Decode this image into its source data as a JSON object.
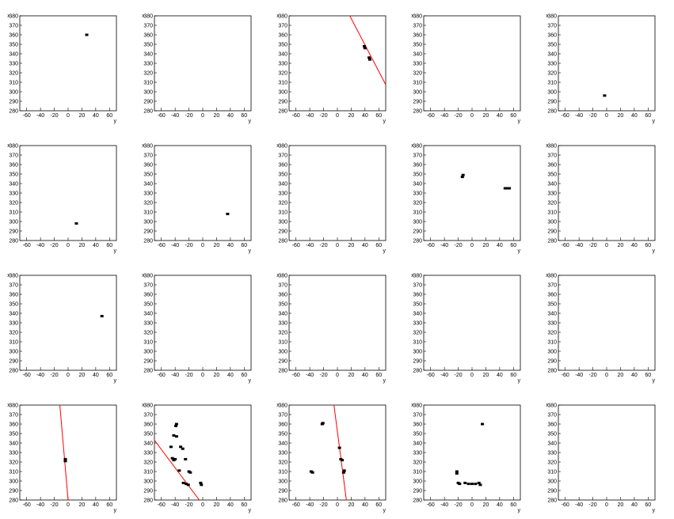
{
  "chart_data": [
    {
      "type": "scatter",
      "x": [
        27
      ],
      "y": [
        360
      ],
      "color": "#000000",
      "xlabel": "y",
      "ylabel": "x",
      "xlim": [
        -70,
        70
      ],
      "ylim": [
        280,
        380
      ],
      "xticks": [
        -60,
        -40,
        -20,
        0,
        20,
        40,
        60
      ],
      "yticks": [
        280,
        290,
        300,
        310,
        320,
        330,
        340,
        350,
        360,
        370,
        380
      ]
    },
    {
      "type": "scatter",
      "x": [],
      "y": [],
      "color": "#000000",
      "xlabel": "y",
      "ylabel": "x",
      "xlim": [
        -70,
        70
      ],
      "ylim": [
        280,
        380
      ],
      "xticks": [
        -60,
        -40,
        -20,
        0,
        20,
        40,
        60
      ],
      "yticks": [
        280,
        290,
        300,
        310,
        320,
        330,
        340,
        350,
        360,
        370,
        380
      ]
    },
    {
      "type": "scatter",
      "x": [
        39,
        40,
        46,
        47
      ],
      "y": [
        348,
        346,
        336,
        334
      ],
      "color": "#000000",
      "fit": {
        "x": [
          18,
          70
        ],
        "y": [
          380,
          307.5
        ],
        "color": "#ff0000"
      },
      "xlabel": "y",
      "ylabel": "x",
      "xlim": [
        -70,
        70
      ],
      "ylim": [
        280,
        380
      ],
      "xticks": [
        -60,
        -40,
        -20,
        0,
        20,
        40,
        60
      ],
      "yticks": [
        280,
        290,
        300,
        310,
        320,
        330,
        340,
        350,
        360,
        370,
        380
      ]
    },
    {
      "type": "scatter",
      "x": [],
      "y": [],
      "color": "#000000",
      "xlabel": "y",
      "ylabel": "x",
      "xlim": [
        -70,
        70
      ],
      "ylim": [
        280,
        380
      ],
      "xticks": [
        -60,
        -40,
        -20,
        0,
        20,
        40,
        60
      ],
      "yticks": [
        280,
        290,
        300,
        310,
        320,
        330,
        340,
        350,
        360,
        370,
        380
      ]
    },
    {
      "type": "scatter",
      "x": [
        -3
      ],
      "y": [
        296
      ],
      "color": "#000000",
      "xlabel": "y",
      "ylabel": "x",
      "xlim": [
        -70,
        70
      ],
      "ylim": [
        280,
        380
      ],
      "xticks": [
        -60,
        -40,
        -20,
        0,
        20,
        40,
        60
      ],
      "yticks": [
        280,
        290,
        300,
        310,
        320,
        330,
        340,
        350,
        360,
        370,
        380
      ]
    },
    {
      "type": "scatter",
      "x": [
        12
      ],
      "y": [
        298
      ],
      "color": "#000000",
      "xlabel": "y",
      "ylabel": "x",
      "xlim": [
        -70,
        70
      ],
      "ylim": [
        280,
        380
      ],
      "xticks": [
        -60,
        -40,
        -20,
        0,
        20,
        40,
        60
      ],
      "yticks": [
        280,
        290,
        300,
        310,
        320,
        330,
        340,
        350,
        360,
        370,
        380
      ]
    },
    {
      "type": "scatter",
      "x": [
        36
      ],
      "y": [
        308
      ],
      "color": "#000000",
      "xlabel": "y",
      "ylabel": "x",
      "xlim": [
        -70,
        70
      ],
      "ylim": [
        280,
        380
      ],
      "xticks": [
        -60,
        -40,
        -20,
        0,
        20,
        40,
        60
      ],
      "yticks": [
        280,
        290,
        300,
        310,
        320,
        330,
        340,
        350,
        360,
        370,
        380
      ]
    },
    {
      "type": "scatter",
      "x": [],
      "y": [],
      "color": "#000000",
      "xlabel": "y",
      "ylabel": "x",
      "xlim": [
        -70,
        70
      ],
      "ylim": [
        280,
        380
      ],
      "xticks": [
        -60,
        -40,
        -20,
        0,
        20,
        40,
        60
      ],
      "yticks": [
        280,
        290,
        300,
        310,
        320,
        330,
        340,
        350,
        360,
        370,
        380
      ]
    },
    {
      "type": "scatter",
      "x": [
        -14,
        -13,
        48,
        50,
        52,
        54
      ],
      "y": [
        347,
        349,
        335,
        335,
        335,
        335
      ],
      "color": "#000000",
      "xlabel": "y",
      "ylabel": "x",
      "xlim": [
        -70,
        70
      ],
      "ylim": [
        280,
        380
      ],
      "xticks": [
        -60,
        -40,
        -20,
        0,
        20,
        40,
        60
      ],
      "yticks": [
        280,
        290,
        300,
        310,
        320,
        330,
        340,
        350,
        360,
        370,
        380
      ]
    },
    {
      "type": "scatter",
      "x": [],
      "y": [],
      "color": "#000000",
      "xlabel": "y",
      "ylabel": "x",
      "xlim": [
        -70,
        70
      ],
      "ylim": [
        280,
        380
      ],
      "xticks": [
        -60,
        -40,
        -20,
        0,
        20,
        40,
        60
      ],
      "yticks": [
        280,
        290,
        300,
        310,
        320,
        330,
        340,
        350,
        360,
        370,
        380
      ]
    },
    {
      "type": "scatter",
      "x": [
        49
      ],
      "y": [
        337
      ],
      "color": "#000000",
      "xlabel": "y",
      "ylabel": "x",
      "xlim": [
        -70,
        70
      ],
      "ylim": [
        280,
        380
      ],
      "xticks": [
        -60,
        -40,
        -20,
        0,
        20,
        40,
        60
      ],
      "yticks": [
        280,
        290,
        300,
        310,
        320,
        330,
        340,
        350,
        360,
        370,
        380
      ]
    },
    {
      "type": "scatter",
      "x": [],
      "y": [],
      "color": "#000000",
      "xlabel": "y",
      "ylabel": "x",
      "xlim": [
        -70,
        70
      ],
      "ylim": [
        280,
        380
      ],
      "xticks": [
        -60,
        -40,
        -20,
        0,
        20,
        40,
        60
      ],
      "yticks": [
        280,
        290,
        300,
        310,
        320,
        330,
        340,
        350,
        360,
        370,
        380
      ]
    },
    {
      "type": "scatter",
      "x": [],
      "y": [],
      "color": "#000000",
      "xlabel": "y",
      "ylabel": "x",
      "xlim": [
        -70,
        70
      ],
      "ylim": [
        280,
        380
      ],
      "xticks": [
        -60,
        -40,
        -20,
        0,
        20,
        40,
        60
      ],
      "yticks": [
        280,
        290,
        300,
        310,
        320,
        330,
        340,
        350,
        360,
        370,
        380
      ]
    },
    {
      "type": "scatter",
      "x": [],
      "y": [],
      "color": "#000000",
      "xlabel": "y",
      "ylabel": "x",
      "xlim": [
        -70,
        70
      ],
      "ylim": [
        280,
        380
      ],
      "xticks": [
        -60,
        -40,
        -20,
        0,
        20,
        40,
        60
      ],
      "yticks": [
        280,
        290,
        300,
        310,
        320,
        330,
        340,
        350,
        360,
        370,
        380
      ]
    },
    {
      "type": "scatter",
      "x": [],
      "y": [],
      "color": "#000000",
      "xlabel": "y",
      "ylabel": "x",
      "xlim": [
        -70,
        70
      ],
      "ylim": [
        280,
        380
      ],
      "xticks": [
        -60,
        -40,
        -20,
        0,
        20,
        40,
        60
      ],
      "yticks": [
        280,
        290,
        300,
        310,
        320,
        330,
        340,
        350,
        360,
        370,
        380
      ]
    },
    {
      "type": "scatter",
      "x": [
        -4,
        -4
      ],
      "y": [
        323,
        321
      ],
      "color": "#000000",
      "fit": {
        "x": [
          -12,
          0
        ],
        "y": [
          380,
          280
        ],
        "color": "#ff0000"
      },
      "xlabel": "y",
      "ylabel": "x",
      "xlim": [
        -70,
        70
      ],
      "ylim": [
        280,
        380
      ],
      "xticks": [
        -60,
        -40,
        -20,
        0,
        20,
        40,
        60
      ],
      "yticks": [
        280,
        290,
        300,
        310,
        320,
        330,
        340,
        350,
        360,
        370,
        380
      ]
    },
    {
      "type": "scatter",
      "x": [
        -38,
        -39,
        -42,
        -38,
        -46,
        -44,
        -40,
        -42,
        -32,
        -29,
        -25,
        -34,
        -20,
        -18,
        -28,
        -24,
        -21,
        -3,
        -2
      ],
      "y": [
        360,
        358,
        348,
        347,
        336,
        324,
        323,
        322,
        336,
        334,
        323,
        311,
        310,
        309,
        298,
        297,
        296,
        298,
        296
      ],
      "color": "#000000",
      "fit": {
        "x": [
          -70,
          -5
        ],
        "y": [
          343,
          280
        ],
        "color": "#ff0000"
      },
      "xlabel": "y",
      "ylabel": "x",
      "xlim": [
        -70,
        70
      ],
      "ylim": [
        280,
        380
      ],
      "xticks": [
        -60,
        -40,
        -20,
        0,
        20,
        40,
        60
      ],
      "yticks": [
        280,
        290,
        300,
        310,
        320,
        330,
        340,
        350,
        360,
        370,
        380
      ]
    },
    {
      "type": "scatter",
      "x": [
        -22,
        -21,
        -38,
        -36,
        3,
        5,
        7,
        10,
        9
      ],
      "y": [
        360,
        361,
        310,
        309,
        335,
        323,
        322,
        311,
        309
      ],
      "color": "#000000",
      "fit": {
        "x": [
          -5,
          13
        ],
        "y": [
          380,
          280
        ],
        "color": "#ff0000"
      },
      "xlabel": "y",
      "ylabel": "x",
      "xlim": [
        -70,
        70
      ],
      "ylim": [
        280,
        380
      ],
      "xticks": [
        -60,
        -40,
        -20,
        0,
        20,
        40,
        60
      ],
      "yticks": [
        280,
        290,
        300,
        310,
        320,
        330,
        340,
        350,
        360,
        370,
        380
      ]
    },
    {
      "type": "scatter",
      "x": [
        -22,
        -22,
        -20,
        -18,
        -10,
        -5,
        0,
        5,
        10,
        12,
        15
      ],
      "y": [
        310,
        308,
        298,
        297,
        298,
        297,
        297,
        297,
        298,
        296,
        360
      ],
      "color": "#000000",
      "xlabel": "y",
      "ylabel": "x",
      "xlim": [
        -70,
        70
      ],
      "ylim": [
        280,
        380
      ],
      "xticks": [
        -60,
        -40,
        -20,
        0,
        20,
        40,
        60
      ],
      "yticks": [
        280,
        290,
        300,
        310,
        320,
        330,
        340,
        350,
        360,
        370,
        380
      ]
    },
    {
      "type": "scatter",
      "x": [],
      "y": [],
      "color": "#000000",
      "xlabel": "y",
      "ylabel": "x",
      "xlim": [
        -70,
        70
      ],
      "ylim": [
        280,
        380
      ],
      "xticks": [
        -60,
        -40,
        -20,
        0,
        20,
        40,
        60
      ],
      "yticks": [
        280,
        290,
        300,
        310,
        320,
        330,
        340,
        350,
        360,
        370,
        380
      ]
    }
  ]
}
